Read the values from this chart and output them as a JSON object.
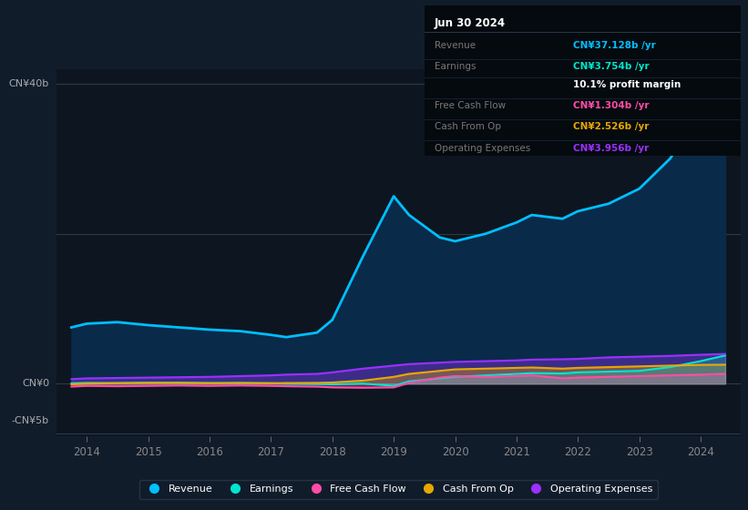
{
  "bg_color": "#111c2b",
  "plot_bg_color": "#0d1520",
  "years": [
    2013.75,
    2014.0,
    2014.5,
    2015.0,
    2015.5,
    2016.0,
    2016.5,
    2017.0,
    2017.25,
    2017.75,
    2018.0,
    2018.5,
    2019.0,
    2019.25,
    2019.75,
    2020.0,
    2020.5,
    2021.0,
    2021.25,
    2021.75,
    2022.0,
    2022.5,
    2023.0,
    2023.5,
    2024.0,
    2024.4
  ],
  "revenue": [
    7.5,
    8.0,
    8.2,
    7.8,
    7.5,
    7.2,
    7.0,
    6.5,
    6.2,
    6.8,
    8.5,
    17.0,
    25.0,
    22.5,
    19.5,
    19.0,
    20.0,
    21.5,
    22.5,
    22.0,
    23.0,
    24.0,
    26.0,
    30.0,
    36.0,
    37.128
  ],
  "earnings": [
    0.05,
    0.1,
    0.08,
    0.12,
    0.1,
    0.08,
    0.06,
    0.05,
    0.0,
    -0.05,
    -0.1,
    0.0,
    -0.3,
    0.3,
    0.7,
    0.9,
    1.1,
    1.3,
    1.4,
    1.35,
    1.5,
    1.6,
    1.7,
    2.2,
    3.0,
    3.754
  ],
  "free_cash_flow": [
    -0.4,
    -0.3,
    -0.35,
    -0.3,
    -0.25,
    -0.3,
    -0.25,
    -0.3,
    -0.35,
    -0.4,
    -0.5,
    -0.55,
    -0.5,
    0.1,
    0.8,
    1.0,
    0.9,
    1.0,
    1.1,
    0.7,
    0.8,
    0.9,
    1.0,
    1.1,
    1.2,
    1.304
  ],
  "cash_from_op": [
    -0.1,
    0.0,
    0.05,
    0.1,
    0.12,
    0.05,
    0.1,
    0.05,
    0.08,
    0.1,
    0.15,
    0.4,
    0.9,
    1.3,
    1.7,
    1.9,
    2.0,
    2.1,
    2.15,
    2.0,
    2.1,
    2.2,
    2.3,
    2.4,
    2.5,
    2.526
  ],
  "op_expenses": [
    0.6,
    0.7,
    0.75,
    0.8,
    0.85,
    0.9,
    1.0,
    1.1,
    1.2,
    1.3,
    1.5,
    2.0,
    2.4,
    2.6,
    2.8,
    2.9,
    3.0,
    3.1,
    3.2,
    3.25,
    3.3,
    3.5,
    3.6,
    3.7,
    3.85,
    3.956
  ],
  "revenue_color": "#00bfff",
  "earnings_color": "#00e5cc",
  "fcf_color": "#ff4da6",
  "cashfromop_color": "#e6a800",
  "opex_color": "#9b30ff",
  "revenue_fill_color": "#0a2a4a",
  "ylim_top": 42,
  "ylim_bottom": -7,
  "xlim_left": 2013.5,
  "xlim_right": 2024.65,
  "xticks": [
    2014,
    2015,
    2016,
    2017,
    2018,
    2019,
    2020,
    2021,
    2022,
    2023,
    2024
  ],
  "y_labels": [
    [
      "CN¥40b",
      40
    ],
    [
      "CN¥0",
      0
    ],
    [
      "-CN¥5b",
      -5
    ]
  ],
  "grid_lines": [
    40,
    20,
    0
  ],
  "legend_labels": [
    "Revenue",
    "Earnings",
    "Free Cash Flow",
    "Cash From Op",
    "Operating Expenses"
  ],
  "legend_colors": [
    "#00bfff",
    "#00e5cc",
    "#ff4da6",
    "#e6a800",
    "#9b30ff"
  ],
  "info_box": {
    "date": "Jun 30 2024",
    "rows": [
      {
        "label": "Revenue",
        "value": "CN¥37.128b /yr",
        "value_color": "#00bfff"
      },
      {
        "label": "Earnings",
        "value": "CN¥3.754b /yr",
        "value_color": "#00e5cc"
      },
      {
        "label": "",
        "value": "10.1% profit margin",
        "value_color": "#ffffff"
      },
      {
        "label": "Free Cash Flow",
        "value": "CN¥1.304b /yr",
        "value_color": "#ff4da6"
      },
      {
        "label": "Cash From Op",
        "value": "CN¥2.526b /yr",
        "value_color": "#e6a800"
      },
      {
        "label": "Operating Expenses",
        "value": "CN¥3.956b /yr",
        "value_color": "#9b30ff"
      }
    ]
  }
}
